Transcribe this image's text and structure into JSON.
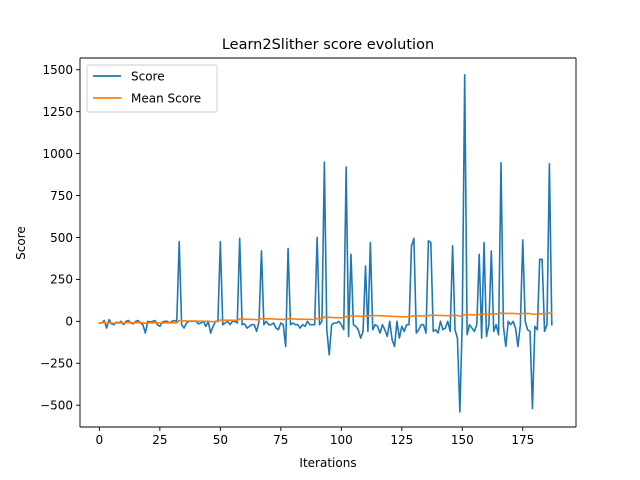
{
  "chart_data": {
    "type": "line",
    "title": "Learn2Slither score evolution",
    "xlabel": "Iterations",
    "ylabel": "Score",
    "xlim": [
      -8,
      197
    ],
    "ylim": [
      -630,
      1570
    ],
    "xticks": [
      0,
      25,
      50,
      75,
      100,
      125,
      150,
      175
    ],
    "xtick_labels": [
      "0",
      "25",
      "50",
      "75",
      "100",
      "125",
      "150",
      "175"
    ],
    "yticks": [
      -500,
      -250,
      0,
      250,
      500,
      750,
      1000,
      1250,
      1500
    ],
    "ytick_labels": [
      "−500",
      "−250",
      "0",
      "250",
      "500",
      "750",
      "1000",
      "1250",
      "1500"
    ],
    "grid": false,
    "legend_position": "upper left",
    "series": [
      {
        "name": "Score",
        "color": "#1f77b4",
        "y": [
          -10,
          -10,
          5,
          -40,
          10,
          -15,
          -20,
          -5,
          -10,
          0,
          -20,
          0,
          5,
          -10,
          -15,
          0,
          5,
          -10,
          -20,
          -70,
          0,
          -5,
          0,
          5,
          -20,
          -30,
          -5,
          0,
          0,
          -10,
          0,
          5,
          0,
          475,
          -20,
          -40,
          -10,
          0,
          0,
          0,
          0,
          -15,
          -10,
          0,
          -30,
          0,
          -70,
          -30,
          0,
          0,
          475,
          -20,
          -10,
          0,
          -20,
          0,
          0,
          -10,
          495,
          -20,
          -15,
          -40,
          -30,
          -20,
          -20,
          -60,
          0,
          420,
          -20,
          0,
          -20,
          -20,
          -10,
          -40,
          -50,
          -10,
          -20,
          -150,
          435,
          -20,
          -10,
          -20,
          -20,
          -40,
          -20,
          -30,
          0,
          -20,
          -20,
          -20,
          500,
          -20,
          0,
          950,
          -50,
          -200,
          -20,
          -10,
          -10,
          0,
          -20,
          -50,
          920,
          -90,
          400,
          -20,
          -30,
          -50,
          -100,
          -60,
          330,
          -60,
          470,
          -50,
          -20,
          -30,
          -70,
          -20,
          -50,
          -90,
          0,
          -110,
          -150,
          0,
          -100,
          -30,
          -60,
          -20,
          -20,
          450,
          495,
          -70,
          -50,
          -20,
          -20,
          -70,
          480,
          470,
          -60,
          -50,
          -70,
          0,
          -50,
          -40,
          0,
          -60,
          450,
          -50,
          -100,
          -540,
          0,
          1470,
          -80,
          -20,
          -40,
          -60,
          -20,
          400,
          -100,
          470,
          -90,
          -20,
          420,
          -60,
          -20,
          -80,
          945,
          -30,
          -150,
          0,
          -20,
          0,
          -40,
          -150,
          -20,
          485,
          0,
          -50,
          -60,
          -520,
          -30,
          -50,
          370,
          370,
          -60,
          -20,
          940,
          -20
        ]
      },
      {
        "name": "Mean Score",
        "color": "#ff7f0e",
        "y": [
          -10,
          -10,
          -5,
          -14,
          -9,
          -10,
          -11,
          -10,
          -10,
          -9,
          -10,
          -9,
          -8,
          -8,
          -9,
          -8,
          -7,
          -8,
          -8,
          -11,
          -10,
          -10,
          -9,
          -9,
          -9,
          -10,
          -10,
          -10,
          -9,
          -9,
          -9,
          -9,
          -9,
          5,
          4,
          3,
          2,
          2,
          2,
          2,
          2,
          1,
          1,
          1,
          0,
          0,
          -1,
          -2,
          -1,
          -1,
          8,
          7,
          7,
          7,
          6,
          6,
          6,
          6,
          14,
          14,
          13,
          12,
          12,
          11,
          11,
          10,
          10,
          16,
          15,
          15,
          15,
          14,
          14,
          13,
          12,
          12,
          12,
          10,
          15,
          15,
          14,
          14,
          13,
          13,
          13,
          12,
          12,
          12,
          11,
          11,
          17,
          16,
          16,
          26,
          25,
          23,
          23,
          22,
          22,
          22,
          21,
          21,
          29,
          28,
          32,
          32,
          31,
          31,
          30,
          29,
          32,
          31,
          35,
          35,
          34,
          34,
          33,
          33,
          32,
          31,
          31,
          30,
          29,
          29,
          28,
          27,
          27,
          27,
          26,
          30,
          33,
          33,
          32,
          32,
          32,
          31,
          34,
          37,
          36,
          36,
          35,
          35,
          34,
          34,
          34,
          33,
          36,
          36,
          35,
          31,
          31,
          40,
          40,
          40,
          39,
          39,
          38,
          41,
          40,
          43,
          42,
          42,
          45,
          44,
          44,
          43,
          49,
          48,
          47,
          47,
          47,
          47,
          46,
          45,
          45,
          47,
          47,
          47,
          46,
          43,
          43,
          42,
          44,
          46,
          45,
          45,
          50,
          50
        ]
      }
    ]
  }
}
